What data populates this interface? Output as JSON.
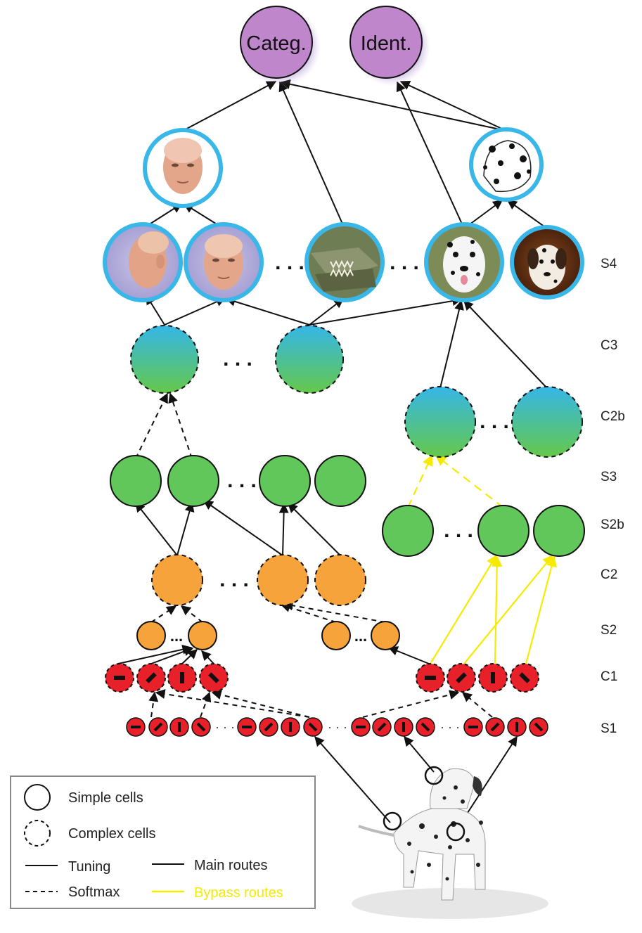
{
  "top_nodes": {
    "categ": "Categ.",
    "ident": "Ident."
  },
  "layers": [
    "S4",
    "C3",
    "C2b",
    "S3",
    "S2b",
    "C2",
    "S2",
    "C1",
    "S1"
  ],
  "legend": {
    "simple": "Simple cells",
    "complex": "Complex cells",
    "tuning": "Tuning",
    "softmax": "Softmax",
    "main": "Main routes",
    "bypass": "Bypass routes"
  },
  "colors": {
    "top_node": "#c086cc",
    "blue_ring": "#38b7e8",
    "green": "#62c75a",
    "orange": "#f7a33c",
    "red": "#e8202a",
    "yellow": "#f5eb00",
    "c3_top": "#35b6e8",
    "c3_bottom": "#65c84a"
  }
}
